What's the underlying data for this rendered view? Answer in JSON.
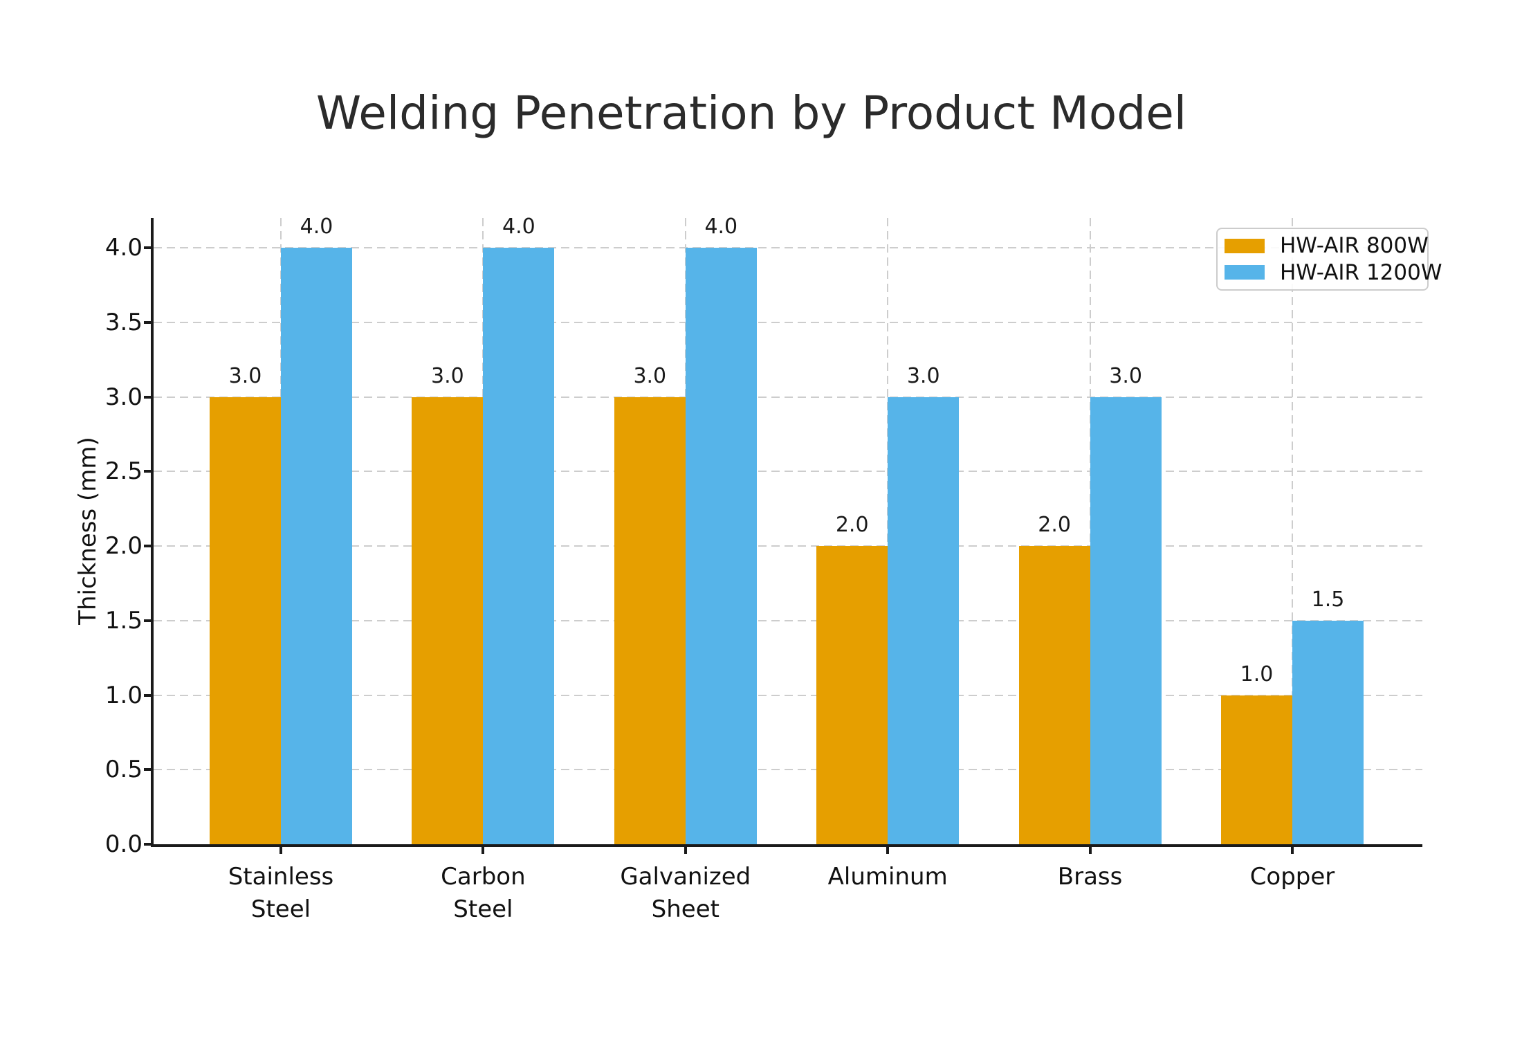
{
  "chart_data": {
    "type": "bar",
    "title": "Welding Penetration by Product Model",
    "xlabel": "",
    "ylabel": "Thickness (mm)",
    "categories": [
      "Stainless\nSteel",
      "Carbon\nSteel",
      "Galvanized\nSheet",
      "Aluminum",
      "Brass",
      "Copper"
    ],
    "series": [
      {
        "name": "HW-AIR 800W",
        "color": "#E69F00",
        "values": [
          3.0,
          3.0,
          3.0,
          2.0,
          2.0,
          1.0
        ]
      },
      {
        "name": "HW-AIR 1200W",
        "color": "#56B4E9",
        "values": [
          4.0,
          4.0,
          4.0,
          3.0,
          3.0,
          1.5
        ]
      }
    ],
    "bar_value_label_decimals": 1,
    "y_axis": {
      "min": 0.0,
      "max": 4.2,
      "tick_step": 0.5,
      "tick_labels": [
        "0.0",
        "0.5",
        "1.0",
        "1.5",
        "2.0",
        "2.5",
        "3.0",
        "3.5",
        "4.0"
      ]
    },
    "grid": true,
    "grid_style": "dashed",
    "legend_position": "upper right",
    "colors": {
      "series_800w": "#E69F00",
      "series_1200w": "#56B4E9",
      "grid": "#cdcdcd",
      "axis": "#1a1a1a",
      "text": "#111111",
      "title": "#2b2b2b",
      "legend_border": "#cccccc"
    }
  }
}
